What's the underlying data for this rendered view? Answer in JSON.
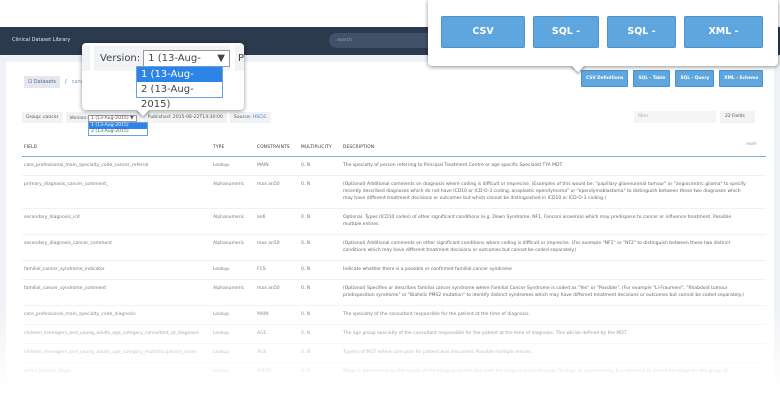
{
  "header": {
    "brand": "Clinical Dataset Library",
    "search_placeholder": "search"
  },
  "breadcrumb": {
    "datasets": "Datasets",
    "current": "cancer"
  },
  "meta": {
    "group": "Group: cancer",
    "version_label": "Version:",
    "version_selected": "1 (13-Aug-2015)",
    "version_options": [
      "1 (13-Aug-2015)",
      "2 (13-Aug-2015)"
    ],
    "published": "Published: 2015-06-22T14:30:00",
    "source_label": "Source:",
    "source_link": "HSCIC"
  },
  "exports": [
    "CSV Definitions",
    "SQL - Table",
    "SQL - Query",
    "XML - Schema"
  ],
  "filter_placeholder": "filter",
  "field_count": "22 Fields",
  "reset": "reset",
  "columns": [
    "FIELD",
    "TYPE",
    "CONSTRAINTS",
    "MULTIPLICITY",
    "DESCRIPTION"
  ],
  "rows": [
    [
      "care_professional_main_specialty_code_cancer_referral",
      "Lookup",
      "MAIN",
      "0..N",
      "The specialty of person referring to Principal Treatment Centre or age specific Specialist TYA MDT."
    ],
    [
      "primary_diagnosis_cancer_comment_",
      "Alphanumeric",
      "max an50",
      "0..N",
      "(Optional) Additional comments on diagnosis where coding is difficult or imprecise. (Examples of this would be: \"papillary glioneuronal tumour\" or \"angiocentric glioma\" to specify recently described diagnoses which do not have ICD10 or ICD-O-3 coding, anaplastic ependymoma\" or \"ependymoblastoma\" to distinguish between these two diagnoses which may have different treatment decisions or outcomes but which cannot be distinguished in ICD10 or ICD-O-3 coding.)"
    ],
    [
      "secondary_diagnosis_icd",
      "Alphanumeric",
      "an6",
      "0..N",
      "Optional. Types (ICD10 codes) of other significant conditions (e.g. Down Syndrome, NF1, Fanconi anaemia) which may predispose to cancer or influence treatment. Possible multiple entries."
    ],
    [
      "secondary_diagnosis_cancer_comment",
      "Alphanumeric",
      "max an50",
      "0..N",
      "(Optional) Additional comments on other significant conditions where coding is difficult or imprecise. (For example \"NF1\" or \"NF2\" to distinguish between these two distinct conditions which may have different treatment decisions or outcomes but cannot be coded separately.)"
    ],
    [
      "familial_cancer_syndrome_indicator",
      "Lookup",
      "FCS",
      "0..N",
      "Indicate whether there is a possible or confirmed familial cancer syndrome"
    ],
    [
      "familial_cancer_syndrome_comment",
      "Alphanumeric",
      "max an50",
      "0..N",
      "(Optional) Specifies or describes familial cancer syndrome where Familial Cancer Syndrome is coded as \"Yes\" or \"Possible\". (For example \"Li-Fraumeni\", \"Rhabdoid tumour predisposition syndrome\" or \"Biallelic PMS2 mutation\" to identify distinct syndromes which may have different treatment decisions or outcomes but cannot be coded separately.)"
    ],
    [
      "care_professional_main_specialty_code_diagnosis",
      "Lookup",
      "MAIN",
      "0..N",
      "The specialty of the consultant responsible for the patient at the time of diagnosis."
    ],
    [
      "children_teenagers_and_young_adults_age_category_consultant_at_diagnosis",
      "Lookup",
      "AGE",
      "0..N",
      "The age group specialty of the consultant responsible for the patient at the time of diagnosis. This will be defined by the MDT."
    ],
    [
      "children_teenagers_and_young_adults_age_category_multidisciplinary_team",
      "Lookup",
      "AGE",
      "0..N",
      "Type(s) of MDT where care plan for patient was discussed. Possible multiple entries."
    ],
    [
      "wilms_tumour_stage",
      "Lookup",
      "WILMS",
      "0..N",
      "Stage is determined by the results of the imaging studies and both the surgical and pathologic findings at nephrectomy. It is essential to record the stage for this group of"
    ]
  ],
  "colors": {
    "header": "#2c3a4d",
    "button": "#5ea6dd",
    "selected": "#2d83e6"
  }
}
